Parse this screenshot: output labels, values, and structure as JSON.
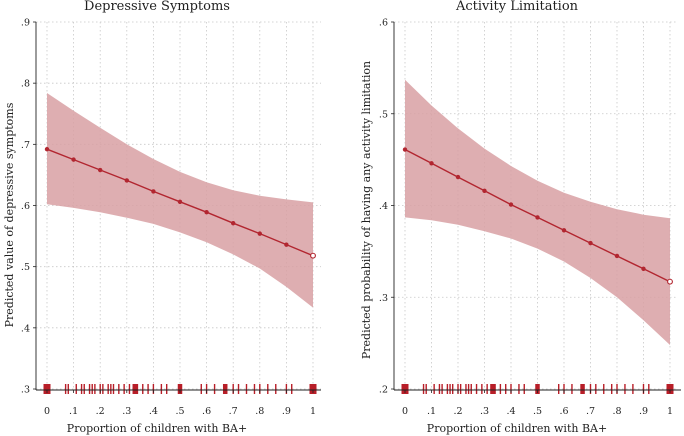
{
  "chart_data": [
    {
      "type": "line",
      "title": "Depressive Symptoms",
      "xlabel": "Proportion of children with BA+",
      "ylabel": "Predicted value of depressive symptoms",
      "xlim": [
        0,
        1
      ],
      "ylim": [
        0.3,
        0.9
      ],
      "xticks": [
        "0",
        ".1",
        ".2",
        ".3",
        ".4",
        ".5",
        ".6",
        ".7",
        ".8",
        ".9",
        "1"
      ],
      "yticks": [
        ".3",
        ".4",
        ".5",
        ".6",
        ".7",
        ".8",
        ".9"
      ],
      "x": [
        0,
        0.1,
        0.2,
        0.3,
        0.4,
        0.5,
        0.6,
        0.7,
        0.8,
        0.9,
        1
      ],
      "series": [
        {
          "values": [
            0.692,
            0.675,
            0.658,
            0.641,
            0.623,
            0.606,
            0.589,
            0.571,
            0.554,
            0.536,
            0.518
          ],
          "ci_lower": [
            0.602,
            0.596,
            0.589,
            0.58,
            0.57,
            0.556,
            0.54,
            0.52,
            0.497,
            0.467,
            0.433
          ],
          "ci_upper": [
            0.784,
            0.755,
            0.727,
            0.7,
            0.676,
            0.655,
            0.638,
            0.625,
            0.616,
            0.61,
            0.605
          ]
        }
      ],
      "rug": [
        0,
        0.07,
        0.08,
        0.11,
        0.13,
        0.14,
        0.16,
        0.17,
        0.18,
        0.2,
        0.21,
        0.23,
        0.24,
        0.25,
        0.27,
        0.29,
        0.31,
        0.33,
        0.34,
        0.36,
        0.38,
        0.4,
        0.43,
        0.45,
        0.5,
        0.58,
        0.6,
        0.63,
        0.67,
        0.7,
        0.72,
        0.75,
        0.78,
        0.8,
        0.83,
        0.86,
        0.9,
        0.92,
        1
      ]
    },
    {
      "type": "line",
      "title": "Activity Limitation",
      "xlabel": "Proportion of children with BA+",
      "ylabel": "Predicted probability of having any activity limitation",
      "xlim": [
        0,
        1
      ],
      "ylim": [
        0.2,
        0.6
      ],
      "xticks": [
        "0",
        ".1",
        ".2",
        ".3",
        ".4",
        ".5",
        ".6",
        ".7",
        ".8",
        ".9",
        "1"
      ],
      "yticks": [
        ".2",
        ".3",
        ".4",
        ".5",
        ".6"
      ],
      "x": [
        0,
        0.1,
        0.2,
        0.3,
        0.4,
        0.5,
        0.6,
        0.7,
        0.8,
        0.9,
        1
      ],
      "series": [
        {
          "values": [
            0.461,
            0.446,
            0.431,
            0.416,
            0.401,
            0.387,
            0.373,
            0.359,
            0.345,
            0.331,
            0.317
          ],
          "ci_lower": [
            0.387,
            0.384,
            0.379,
            0.372,
            0.364,
            0.353,
            0.339,
            0.321,
            0.3,
            0.275,
            0.248
          ],
          "ci_upper": [
            0.537,
            0.509,
            0.484,
            0.462,
            0.443,
            0.427,
            0.414,
            0.404,
            0.396,
            0.39,
            0.386
          ]
        }
      ],
      "rug": [
        0,
        0.07,
        0.08,
        0.11,
        0.13,
        0.14,
        0.16,
        0.17,
        0.18,
        0.2,
        0.21,
        0.23,
        0.24,
        0.25,
        0.27,
        0.29,
        0.31,
        0.33,
        0.34,
        0.36,
        0.38,
        0.4,
        0.43,
        0.45,
        0.5,
        0.58,
        0.6,
        0.63,
        0.67,
        0.7,
        0.72,
        0.75,
        0.78,
        0.8,
        0.83,
        0.86,
        0.9,
        0.92,
        1
      ]
    }
  ],
  "colors": {
    "line": "#b22630",
    "band": "#d8a0a3",
    "rug": "#b81e28"
  }
}
